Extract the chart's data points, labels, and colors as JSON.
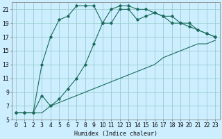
{
  "title": "",
  "xlabel": "Humidex (Indice chaleur)",
  "bg_color": "#cceeff",
  "grid_color": "#99cccc",
  "line_color": "#1a6b5a",
  "xlim": [
    -0.5,
    23.5
  ],
  "ylim": [
    5,
    22
  ],
  "yticks": [
    5,
    7,
    9,
    11,
    13,
    15,
    17,
    19,
    21
  ],
  "xticks": [
    0,
    1,
    2,
    3,
    4,
    5,
    6,
    7,
    8,
    9,
    10,
    11,
    12,
    13,
    14,
    15,
    16,
    17,
    18,
    19,
    20,
    21,
    22,
    23
  ],
  "line1_x": [
    0,
    1,
    2,
    3,
    4,
    5,
    6,
    7,
    8,
    9,
    10,
    11,
    12,
    13,
    14,
    15,
    16,
    17,
    18,
    19,
    20,
    21,
    22,
    23
  ],
  "line1_y": [
    6,
    6,
    6,
    6,
    7,
    7.5,
    8,
    8.5,
    9,
    9.5,
    10,
    10.5,
    11,
    11.5,
    12,
    12.5,
    13,
    14,
    14.5,
    15,
    15.5,
    16,
    16,
    16.5
  ],
  "line2_x": [
    0,
    1,
    2,
    3,
    4,
    5,
    6,
    7,
    8,
    9,
    10,
    11,
    12,
    13,
    14,
    15,
    16,
    17,
    18,
    19,
    20,
    21,
    22,
    23
  ],
  "line2_y": [
    6,
    6,
    6,
    8.5,
    7,
    8,
    9.5,
    11,
    13,
    16,
    19,
    19,
    21,
    21,
    19.5,
    20,
    20.5,
    20,
    20,
    19,
    19,
    18,
    17.5,
    17
  ],
  "line3_x": [
    0,
    1,
    2,
    3,
    4,
    5,
    6,
    7,
    8,
    9,
    10,
    11,
    12,
    13,
    14,
    15,
    16,
    17,
    18,
    19,
    20,
    21,
    22,
    23
  ],
  "line3_y": [
    6,
    6,
    6,
    13,
    17,
    19.5,
    20,
    21.5,
    21.5,
    21.5,
    19,
    21,
    21.5,
    21.5,
    21,
    21,
    20.5,
    20,
    19,
    19,
    18.5,
    18,
    17.5,
    17
  ]
}
